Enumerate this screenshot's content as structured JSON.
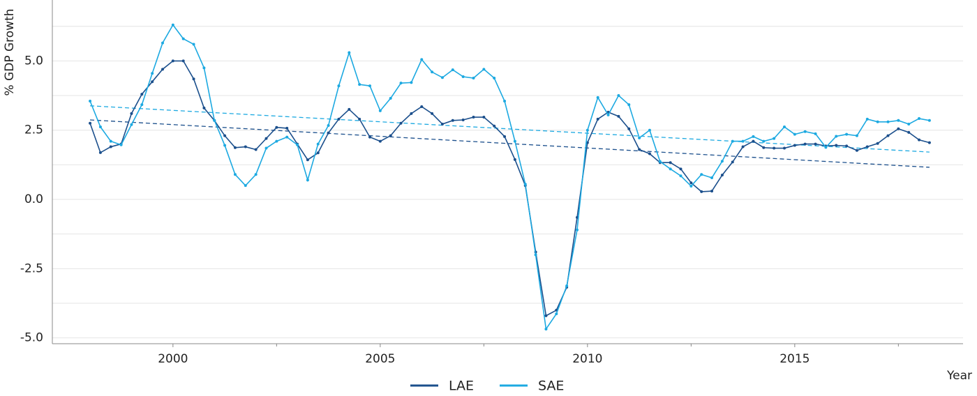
{
  "chart_data": {
    "type": "line",
    "y_label": "% GDP Growth",
    "x_label": "Year",
    "xlim": [
      1997.09,
      2019.06
    ],
    "ylim": [
      -5.21,
      7.2
    ],
    "xticks": [
      2000,
      2005,
      2010,
      2015
    ],
    "xminor": [
      2002.5,
      2007.5,
      2012.5,
      2017.5
    ],
    "yticks": [
      {
        "value": -5,
        "label": "-5.0"
      },
      -2.5,
      {
        "value": 0,
        "label": "0.0"
      },
      2.5,
      {
        "value": 5,
        "label": "5.0"
      }
    ],
    "ygrid_minor": [
      -3.75,
      -1.25,
      1.25,
      3.75,
      6.25
    ],
    "grid": true,
    "legend": "bottom",
    "x": [
      1998,
      1998.25,
      1998.5,
      1998.75,
      1999,
      1999.25,
      1999.5,
      1999.75,
      2000,
      2000.25,
      2000.5,
      2000.75,
      2001,
      2001.25,
      2001.5,
      2001.75,
      2002,
      2002.25,
      2002.5,
      2002.75,
      2003,
      2003.25,
      2003.5,
      2003.75,
      2004,
      2004.25,
      2004.5,
      2004.75,
      2005,
      2005.25,
      2005.5,
      2005.75,
      2006,
      2006.25,
      2006.5,
      2006.75,
      2007,
      2007.25,
      2007.5,
      2007.75,
      2008,
      2008.25,
      2008.5,
      2008.75,
      2009,
      2009.25,
      2009.5,
      2009.75,
      2010,
      2010.25,
      2010.5,
      2010.75,
      2011,
      2011.25,
      2011.5,
      2011.75,
      2012,
      2012.25,
      2012.5,
      2012.75,
      2013,
      2013.25,
      2013.5,
      2013.75,
      2014,
      2014.25,
      2014.5,
      2014.75,
      2015,
      2015.25,
      2015.5,
      2015.75,
      2016,
      2016.25,
      2016.5,
      2016.75,
      2017,
      2017.25,
      2017.5,
      2017.75,
      2018,
      2018.25
    ],
    "series": [
      {
        "name": "LAE",
        "color": "#1b4f8c",
        "trend": [
          2.87,
          1.16
        ],
        "values": [
          2.75,
          1.69,
          1.9,
          2.0,
          3.1,
          3.8,
          4.25,
          4.7,
          5.0,
          5.0,
          4.35,
          3.3,
          2.85,
          2.3,
          1.87,
          1.9,
          1.8,
          2.2,
          2.6,
          2.57,
          2.0,
          1.43,
          1.68,
          2.4,
          2.9,
          3.25,
          2.9,
          2.25,
          2.1,
          2.3,
          2.75,
          3.1,
          3.35,
          3.1,
          2.72,
          2.85,
          2.87,
          2.97,
          2.97,
          2.65,
          2.27,
          1.44,
          0.5,
          -1.9,
          -4.2,
          -4.0,
          -3.17,
          -0.65,
          2.05,
          2.9,
          3.15,
          3.0,
          2.55,
          1.8,
          1.65,
          1.33,
          1.33,
          1.1,
          0.6,
          0.28,
          0.3,
          0.88,
          1.35,
          1.9,
          2.1,
          1.87,
          1.85,
          1.85,
          1.95,
          2.0,
          2.0,
          1.93,
          1.95,
          1.93,
          1.77,
          1.9,
          2.02,
          2.3,
          2.55,
          2.42,
          2.15,
          2.05
        ]
      },
      {
        "name": "SAE",
        "color": "#1ca9e1",
        "trend": [
          3.38,
          1.71
        ],
        "values": [
          3.55,
          2.62,
          2.1,
          1.97,
          2.7,
          3.42,
          4.55,
          5.65,
          6.3,
          5.8,
          5.6,
          4.75,
          2.85,
          1.95,
          0.9,
          0.5,
          0.9,
          1.85,
          2.1,
          2.25,
          1.97,
          0.7,
          2.0,
          2.67,
          4.1,
          5.3,
          4.15,
          4.1,
          3.2,
          3.65,
          4.2,
          4.22,
          5.05,
          4.6,
          4.4,
          4.68,
          4.43,
          4.38,
          4.7,
          4.38,
          3.55,
          2.1,
          0.55,
          -2.0,
          -4.68,
          -4.13,
          -3.12,
          -1.1,
          2.5,
          3.68,
          3.05,
          3.75,
          3.42,
          2.22,
          2.5,
          1.37,
          1.1,
          0.85,
          0.48,
          0.9,
          0.78,
          1.38,
          2.1,
          2.1,
          2.27,
          2.1,
          2.2,
          2.62,
          2.35,
          2.45,
          2.37,
          1.88,
          2.28,
          2.35,
          2.3,
          2.9,
          2.8,
          2.8,
          2.85,
          2.72,
          2.92,
          2.85
        ]
      }
    ]
  }
}
